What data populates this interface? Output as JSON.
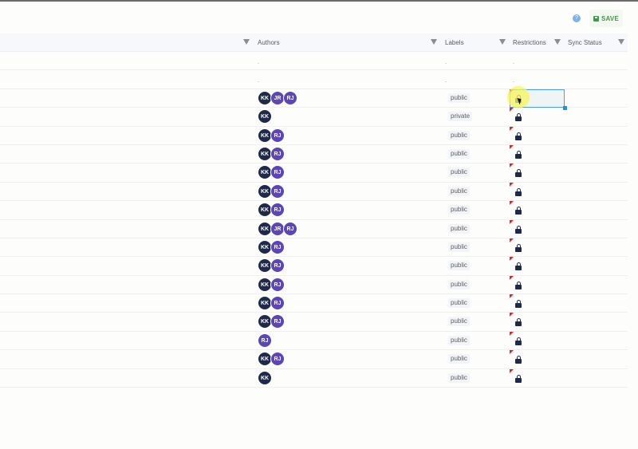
{
  "toolbar": {
    "help_icon": "?",
    "save_label": "SAVE",
    "save_color": "#3f9b47"
  },
  "table": {
    "columns": [
      {
        "label": "Authors",
        "filter": true
      },
      {
        "label": "Labels",
        "filter": true
      },
      {
        "label": "Restrictions",
        "filter": true
      },
      {
        "label": "Sync Status",
        "filter": true
      }
    ],
    "empty_rows": [
      {
        "authors": ".",
        "labels": ".",
        "restrictions": "."
      },
      {
        "authors": ".",
        "labels": ".",
        "restrictions": "."
      }
    ],
    "rows": [
      {
        "authors": [
          "KK",
          "JR",
          "RJ"
        ],
        "label": "public",
        "restriction": "lock-icon",
        "selected": true
      },
      {
        "authors": [
          "KK"
        ],
        "label": "private",
        "restriction": "lock-icon"
      },
      {
        "authors": [
          "KK",
          "RJ"
        ],
        "label": "public",
        "restriction": "lock-icon"
      },
      {
        "authors": [
          "KK",
          "RJ"
        ],
        "label": "public",
        "restriction": "lock-icon"
      },
      {
        "authors": [
          "KK",
          "RJ"
        ],
        "label": "public",
        "restriction": "lock-icon"
      },
      {
        "authors": [
          "KK",
          "RJ"
        ],
        "label": "public",
        "restriction": "lock-icon"
      },
      {
        "authors": [
          "KK",
          "RJ"
        ],
        "label": "public",
        "restriction": "lock-icon"
      },
      {
        "authors": [
          "KK",
          "JR",
          "RJ"
        ],
        "label": "public",
        "restriction": "lock-icon"
      },
      {
        "authors": [
          "KK",
          "RJ"
        ],
        "label": "public",
        "restriction": "lock-icon"
      },
      {
        "authors": [
          "KK",
          "RJ"
        ],
        "label": "public",
        "restriction": "lock-icon"
      },
      {
        "authors": [
          "KK",
          "RJ"
        ],
        "label": "public",
        "restriction": "lock-icon"
      },
      {
        "authors": [
          "KK",
          "RJ"
        ],
        "label": "public",
        "restriction": "lock-icon"
      },
      {
        "authors": [
          "KK",
          "RJ"
        ],
        "label": "public",
        "restriction": "lock-icon"
      },
      {
        "authors": [
          "RJ"
        ],
        "label": "public",
        "restriction": "lock-icon"
      },
      {
        "authors": [
          "KK",
          "RJ"
        ],
        "label": "public",
        "restriction": "lock-icon"
      },
      {
        "authors": [
          "KK"
        ],
        "label": "public",
        "restriction": "lock-icon"
      }
    ]
  },
  "colors": {
    "avatar_kk": "#1f2a48",
    "avatar_other": "#5b45b8",
    "selection": "#4a9fe0",
    "flag": "#e02424"
  }
}
